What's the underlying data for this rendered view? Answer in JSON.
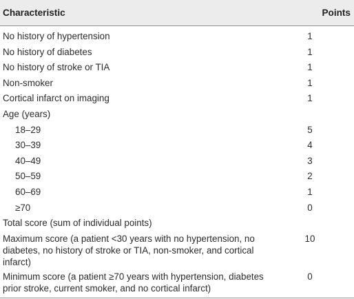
{
  "header": {
    "characteristic": "Characteristic",
    "points": "Points"
  },
  "rows": [
    {
      "label": "No history of hypertension",
      "points": "1"
    },
    {
      "label": "No history of diabetes",
      "points": "1"
    },
    {
      "label": "No history of stroke or TIA",
      "points": "1"
    },
    {
      "label": "Non-smoker",
      "points": "1"
    },
    {
      "label": "Cortical infarct on imaging",
      "points": "1"
    },
    {
      "label": "Age (years)",
      "points": ""
    },
    {
      "label": "18–29",
      "points": "5"
    },
    {
      "label": "30–39",
      "points": "4"
    },
    {
      "label": "40–49",
      "points": "3"
    },
    {
      "label": "50–59",
      "points": "2"
    },
    {
      "label": "60–69",
      "points": "1"
    },
    {
      "label": "≥70",
      "points": "0"
    },
    {
      "label": "Total score (sum of individual points)",
      "points": ""
    },
    {
      "label": "Maximum score (a patient <30 years with no hypertension, no diabetes, no history of stroke or TIA, non-smoker, and cortical infarct)",
      "points": "10"
    },
    {
      "label": "Minimum score (a patient ≥70 years with hypertension, diabetes prior stroke, current smoker, and no cortical infarct)",
      "points": "0"
    }
  ]
}
